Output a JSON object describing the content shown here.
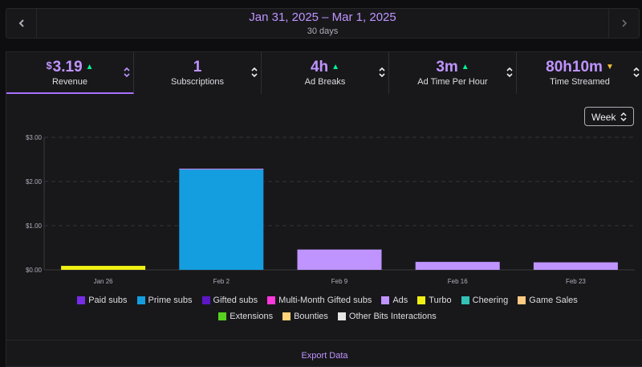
{
  "daterange": {
    "title": "Jan 31, 2025 – Mar 1, 2025",
    "subtitle": "30 days"
  },
  "tabs": [
    {
      "currency": "$",
      "value": "3.19",
      "label": "Revenue",
      "trend": "up",
      "active": true
    },
    {
      "currency": "",
      "value": "1",
      "label": "Subscriptions",
      "trend": "",
      "active": false
    },
    {
      "currency": "",
      "value": "4h",
      "label": "Ad Breaks",
      "trend": "up",
      "active": false
    },
    {
      "currency": "",
      "value": "3m",
      "label": "Ad Time Per Hour",
      "trend": "up",
      "active": false
    },
    {
      "currency": "",
      "value": "80h10m",
      "label": "Time Streamed",
      "trend": "down",
      "active": false
    }
  ],
  "interval_select": {
    "value": "Week"
  },
  "colors": {
    "accent": "#a970ff",
    "trend_up": "#00f593",
    "trend_down": "#f2bf36"
  },
  "chart_data": {
    "type": "bar",
    "stacked": true,
    "categories": [
      "Jan 26",
      "Feb 2",
      "Feb 9",
      "Feb 16",
      "Feb 23"
    ],
    "y_ticks": [
      "$0.00",
      "$1.00",
      "$2.00",
      "$3.00"
    ],
    "ylim": [
      0,
      3
    ],
    "grid": true,
    "series": [
      {
        "name": "Paid subs",
        "color": "#772ce8",
        "values": [
          0,
          0,
          0,
          0,
          0
        ]
      },
      {
        "name": "Prime subs",
        "color": "#149ee0",
        "values": [
          0,
          2.27,
          0,
          0,
          0
        ]
      },
      {
        "name": "Gifted subs",
        "color": "#5c16c5",
        "values": [
          0,
          0,
          0,
          0,
          0
        ]
      },
      {
        "name": "Multi-Month Gifted subs",
        "color": "#ff38db",
        "values": [
          0,
          0,
          0,
          0,
          0
        ]
      },
      {
        "name": "Ads",
        "color": "#bf94ff",
        "values": [
          0,
          0.02,
          0.46,
          0.18,
          0.17
        ]
      },
      {
        "name": "Turbo",
        "color": "#f0f014",
        "values": [
          0.09,
          0,
          0,
          0,
          0
        ]
      },
      {
        "name": "Cheering",
        "color": "#33c2b5",
        "values": [
          0,
          0,
          0,
          0,
          0
        ]
      },
      {
        "name": "Game Sales",
        "color": "#ffca82",
        "values": [
          0,
          0,
          0,
          0,
          0
        ]
      },
      {
        "name": "Extensions",
        "color": "#57d11f",
        "values": [
          0,
          0,
          0,
          0,
          0
        ]
      },
      {
        "name": "Bounties",
        "color": "#ffd37a",
        "values": [
          0,
          0,
          0,
          0,
          0
        ]
      },
      {
        "name": "Other Bits Interactions",
        "color": "#e5e5e5",
        "values": [
          0,
          0,
          0,
          0,
          0
        ]
      }
    ]
  },
  "export": {
    "label": "Export Data"
  }
}
